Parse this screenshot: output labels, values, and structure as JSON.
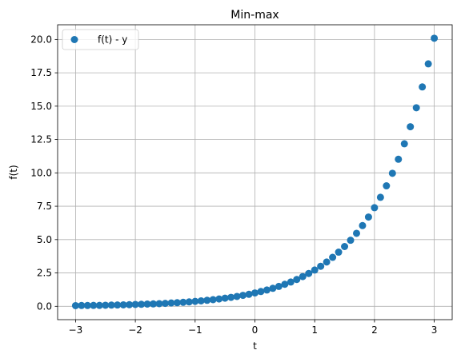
{
  "chart_data": {
    "type": "scatter",
    "title": "Min-max",
    "xlabel": "t",
    "ylabel": "f(t)",
    "xlim": [
      -3.3,
      3.3
    ],
    "ylim": [
      -1.0,
      21.1
    ],
    "xticks": [
      -3,
      -2,
      -1,
      0,
      1,
      2,
      3
    ],
    "xtick_labels": [
      "−3",
      "−2",
      "−1",
      "0",
      "1",
      "2",
      "3"
    ],
    "yticks": [
      0.0,
      2.5,
      5.0,
      7.5,
      10.0,
      12.5,
      15.0,
      17.5,
      20.0
    ],
    "ytick_labels": [
      "0.0",
      "2.5",
      "5.0",
      "7.5",
      "10.0",
      "12.5",
      "15.0",
      "17.5",
      "20.0"
    ],
    "grid": true,
    "legend_position": "top-left",
    "series": [
      {
        "name": "f(t) - y",
        "color": "#1f77b4",
        "x": [
          -3.0,
          -2.9,
          -2.8,
          -2.7,
          -2.6,
          -2.5,
          -2.4,
          -2.3,
          -2.2,
          -2.1,
          -2.0,
          -1.9,
          -1.8,
          -1.7,
          -1.6,
          -1.5,
          -1.4,
          -1.3,
          -1.2,
          -1.1,
          -1.0,
          -0.9,
          -0.8,
          -0.7,
          -0.6,
          -0.5,
          -0.4,
          -0.3,
          -0.2,
          -0.1,
          0.0,
          0.1,
          0.2,
          0.3,
          0.4,
          0.5,
          0.6,
          0.7,
          0.8,
          0.9,
          1.0,
          1.1,
          1.2,
          1.3,
          1.4,
          1.5,
          1.6,
          1.7,
          1.8,
          1.9,
          2.0,
          2.1,
          2.2,
          2.3,
          2.4,
          2.5,
          2.6,
          2.7,
          2.8,
          2.9,
          3.0
        ],
        "y": [
          0.05,
          0.06,
          0.06,
          0.07,
          0.07,
          0.08,
          0.09,
          0.1,
          0.11,
          0.12,
          0.14,
          0.15,
          0.17,
          0.18,
          0.2,
          0.22,
          0.25,
          0.27,
          0.3,
          0.33,
          0.37,
          0.41,
          0.45,
          0.5,
          0.55,
          0.61,
          0.67,
          0.74,
          0.82,
          0.9,
          1.0,
          1.11,
          1.22,
          1.35,
          1.49,
          1.65,
          1.82,
          2.01,
          2.23,
          2.46,
          2.72,
          3.0,
          3.32,
          3.67,
          4.06,
          4.48,
          4.95,
          5.47,
          6.05,
          6.69,
          7.39,
          8.17,
          9.03,
          9.97,
          11.02,
          12.18,
          13.46,
          14.88,
          16.44,
          18.17,
          20.09
        ]
      }
    ]
  }
}
